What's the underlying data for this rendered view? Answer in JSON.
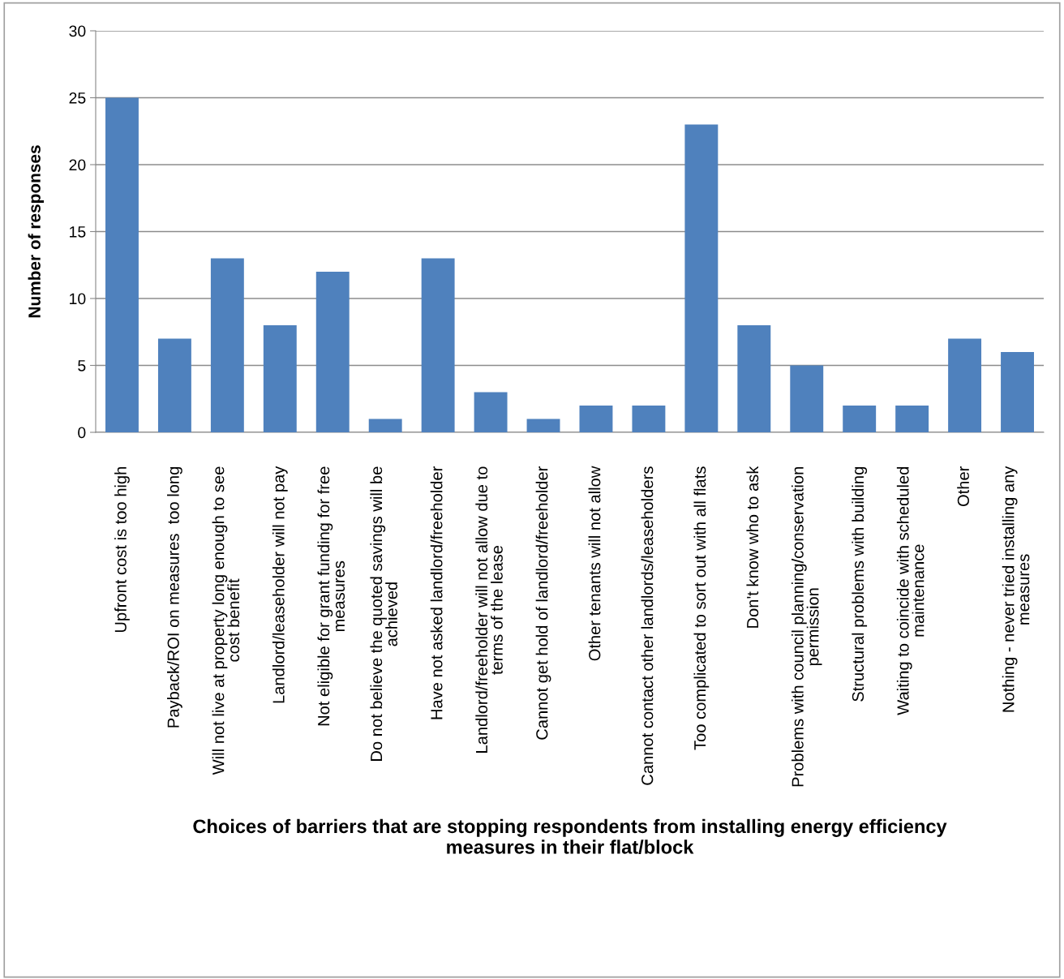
{
  "chart_data": {
    "type": "bar",
    "xlabel": "Choices of barriers that are stopping respondents from installing energy efficiency\nmeasures in their flat/block",
    "ylabel": "Number of responses",
    "categories": [
      "Upfront cost is too high",
      "Payback/ROI on measures  too long",
      "Will not live at property long enough to see\ncost benefit",
      "Landlord/leaseholder will not pay",
      "Not eligible for grant funding for free\nmeasures",
      "Do not believe the quoted savings will be\nachieved",
      "Have not asked landlord/freeholder",
      "Landlord/freeholder will not allow due to\nterms of the lease",
      "Cannot get hold of landlord/freeholder",
      "Other tenants will not allow",
      "Cannot contact other landlords/leaseholders",
      "Too complicated to sort out with all flats",
      "Don't know who to ask",
      "Problems with council planning/conservation\npermission",
      "Structural problems with building",
      "Waiting to coincide with scheduled\nmaintenance",
      "Other",
      "Nothing - never tried installing any\nmeasures"
    ],
    "values": [
      25,
      7,
      13,
      8,
      12,
      1,
      13,
      3,
      1,
      2,
      2,
      23,
      8,
      5,
      2,
      2,
      7,
      6
    ],
    "color": "#4f81bd",
    "ylim": [
      0,
      30
    ],
    "yticks": [
      0,
      5,
      10,
      15,
      20,
      25,
      30
    ],
    "grid": "y",
    "legend": false
  }
}
